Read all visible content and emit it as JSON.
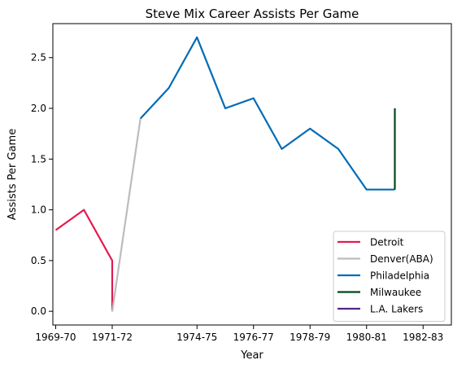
{
  "chart_data": {
    "type": "line",
    "title": "Steve Mix Career Assists Per Game",
    "xlabel": "Year",
    "ylabel": "Assists Per Game",
    "x_ticks": [
      "1969-70",
      "1971-72",
      "1974-75",
      "1976-77",
      "1978-79",
      "1980-81",
      "1982-83"
    ],
    "y_ticks": [
      "0.0",
      "0.5",
      "1.0",
      "1.5",
      "2.0",
      "2.5"
    ],
    "ylim": [
      -0.135,
      2.835
    ],
    "xlim": [
      1969.6,
      1983.7
    ],
    "grid": false,
    "legend_position": "lower-right",
    "series": [
      {
        "name": "Detroit",
        "color": "#e31a4f",
        "points": [
          [
            1969.7,
            0.8
          ],
          [
            1970.7,
            1.0
          ],
          [
            1971.7,
            0.5
          ],
          [
            1971.7,
            0.0
          ]
        ]
      },
      {
        "name": "Denver(ABA)",
        "color": "#bcbcbc",
        "points": [
          [
            1971.7,
            0.0
          ],
          [
            1972.7,
            1.9
          ]
        ]
      },
      {
        "name": "Philadelphia",
        "color": "#006bb6",
        "points": [
          [
            1972.7,
            1.9
          ],
          [
            1973.7,
            2.2
          ],
          [
            1974.7,
            2.7
          ],
          [
            1975.7,
            2.0
          ],
          [
            1976.7,
            2.1
          ],
          [
            1977.7,
            1.6
          ],
          [
            1978.7,
            1.8
          ],
          [
            1979.7,
            1.6
          ],
          [
            1980.7,
            1.2
          ],
          [
            1981.7,
            1.2
          ]
        ]
      },
      {
        "name": "Milwaukee",
        "color": "#00471b",
        "points": [
          [
            1981.7,
            1.2
          ],
          [
            1981.7,
            2.0
          ]
        ]
      },
      {
        "name": "L.A. Lakers",
        "color": "#552583",
        "points": []
      }
    ]
  }
}
